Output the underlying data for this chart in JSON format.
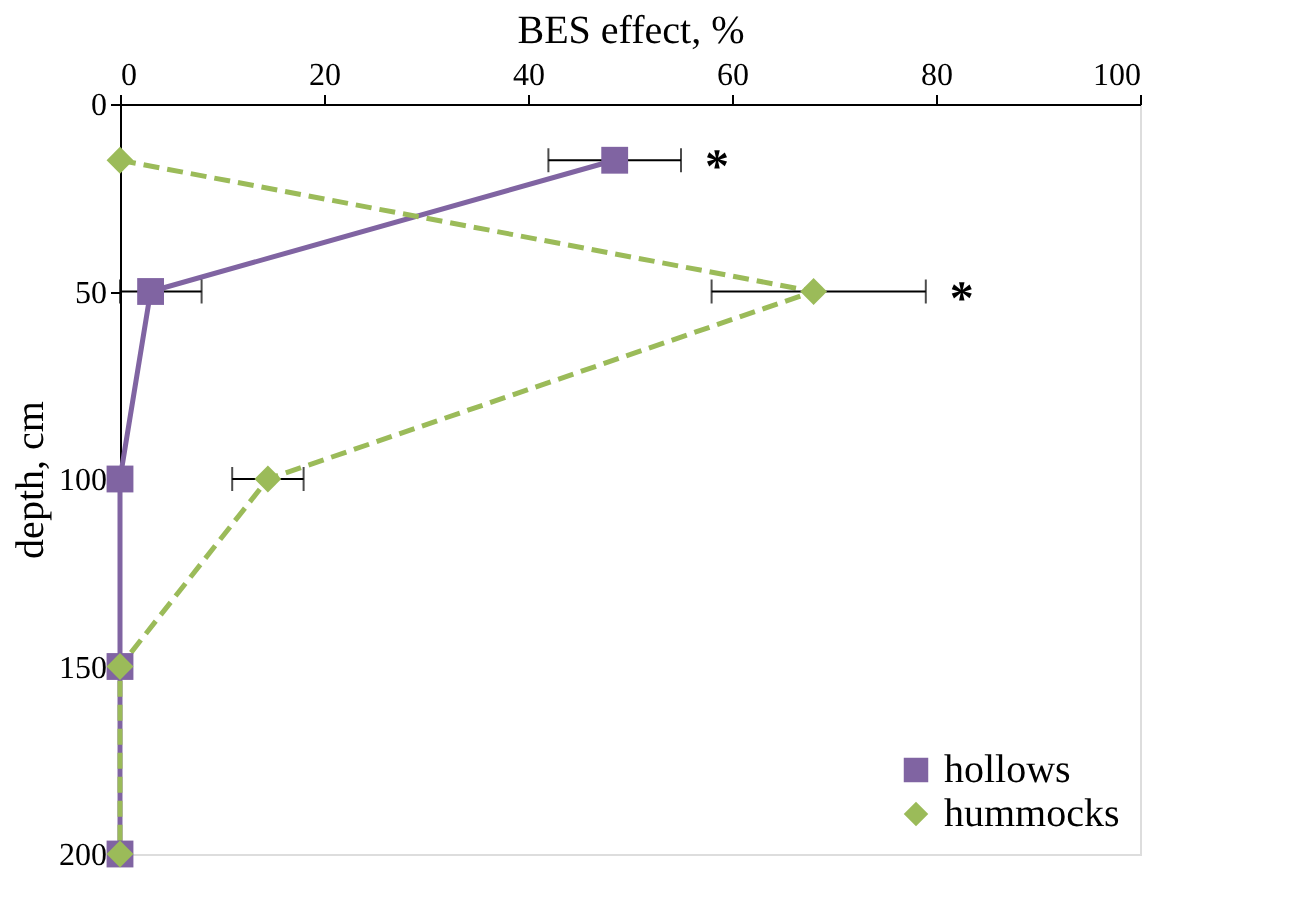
{
  "chart_data": {
    "type": "line",
    "xlabel": "BES effect, %",
    "ylabel": "depth, cm",
    "xlim": [
      0,
      100
    ],
    "xticks": [
      0,
      20,
      40,
      60,
      80,
      100
    ],
    "ylim": [
      200,
      0
    ],
    "yticks": [
      0,
      50,
      100,
      150,
      200
    ],
    "grid": false,
    "legend": "bottom right",
    "series": [
      {
        "name": "hollows",
        "color": "#8064a2",
        "marker": "square",
        "line_style": "solid",
        "x": [
          48.5,
          3,
          0,
          0,
          0
        ],
        "values": [
          15,
          50,
          100,
          150,
          200
        ],
        "xerrors": [
          [
            42,
            55
          ],
          [
            0,
            8
          ],
          null,
          null,
          null
        ]
      },
      {
        "name": "hummocks",
        "color": "#9bbb59",
        "marker": "diamond",
        "line_style": "dashed",
        "x": [
          0,
          68,
          14.5,
          0,
          0
        ],
        "values": [
          15,
          50,
          100,
          150,
          200
        ],
        "xerrors": [
          null,
          [
            58,
            79
          ],
          [
            11,
            18
          ],
          null,
          null
        ]
      }
    ],
    "annotations": [
      "*",
      "*"
    ]
  }
}
